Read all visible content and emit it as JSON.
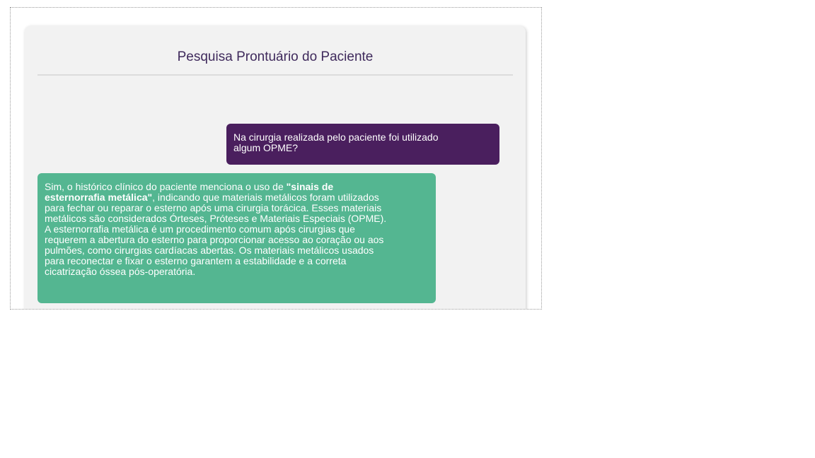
{
  "header": {
    "title": "Pesquisa Prontuário do Paciente"
  },
  "messages": {
    "user": {
      "lines": [
        "Na cirurgia realizada pelo paciente foi utilizado",
        "algum OPME?"
      ],
      "color": "#4a1f5e"
    },
    "assistant": {
      "line1_pre": "Sim, o histórico clínico do paciente menciona o uso de ",
      "line1_bold": "\"sinais de",
      "line2_bold": "esternorrafia metálica\"",
      "line2_post": ", indicando que materiais metálicos foram utilizados",
      "lines": [
        "para fechar ou reparar o esterno após uma cirurgia torácica. Esses materiais",
        "metálicos são considerados Órteses, Próteses e Materiais Especiais (OPME).",
        "A esternorrafia metálica é um procedimento comum após cirurgias que",
        "requerem a abertura do esterno para proporcionar acesso ao coração ou aos",
        "pulmões, como cirurgias cardíacas abertas. Os materiais metálicos usados",
        "para reconectar e fixar o esterno garantem a estabilidade e a correta",
        "cicatrização óssea pós-operatória."
      ],
      "color": "#54b691"
    }
  }
}
